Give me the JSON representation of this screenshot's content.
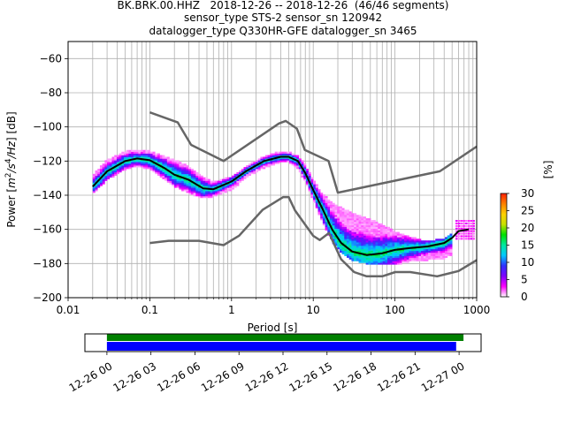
{
  "figure": {
    "title_lines": [
      "BK.BRK.00.HHZ   2018-12-26 -- 2018-12-26  (46/46 segments)",
      "sensor_type STS-2 sensor_sn 120942",
      "datalogger_type Q330HR-GFE datalogger_sn 3465"
    ]
  },
  "chart_data": {
    "type": "heatmap",
    "title": "BK.BRK.00.HHZ   2018-12-26 -- 2018-12-26  (46/46 segments)",
    "xlabel": "Period [s]",
    "ylabel_parts": [
      "Power [",
      "m",
      "2",
      "/s",
      "4",
      "/Hz",
      "] [dB]"
    ],
    "x_scale": "log",
    "xlim": [
      0.01,
      1000
    ],
    "ylim": [
      -200,
      -50
    ],
    "x_ticks": [
      0.01,
      0.1,
      1,
      10,
      100,
      1000
    ],
    "x_tick_labels": [
      "0.01",
      "0.1",
      "1",
      "10",
      "100",
      "1000"
    ],
    "y_ticks": [
      -200,
      -180,
      -160,
      -140,
      -120,
      -100,
      -80,
      -60
    ],
    "y_tick_labels": [
      "−200",
      "−180",
      "−160",
      "−140",
      "−120",
      "−100",
      "−80",
      "−60"
    ],
    "grid": true,
    "colorbar": {
      "label": "[%]",
      "min": 0,
      "max": 30,
      "ticks": [
        0,
        5,
        10,
        15,
        20,
        25,
        30
      ],
      "tick_labels": [
        "0",
        "5",
        "10",
        "15",
        "20",
        "25",
        "30"
      ],
      "colors": [
        "#ffffff",
        "#ff00ff",
        "#7f00ff",
        "#3030ff",
        "#00c8ff",
        "#00e8a0",
        "#00e000",
        "#c8e000",
        "#ffd000",
        "#ff8000",
        "#ff2000"
      ]
    },
    "noise_model_high": {
      "period": [
        0.1,
        0.22,
        0.32,
        0.8,
        3.8,
        4.6,
        6.3,
        7.9,
        15.4,
        20,
        354.8,
        1000
      ],
      "db": [
        -91.5,
        -97.4,
        -110.5,
        -120,
        -98,
        -96.5,
        -101,
        -113.5,
        -120,
        -138.5,
        -126,
        -111.5
      ]
    },
    "noise_model_low": {
      "period": [
        0.1,
        0.17,
        0.4,
        0.8,
        1.24,
        2.4,
        4.3,
        5,
        6,
        10,
        12,
        15.6,
        21.9,
        31.6,
        45,
        70,
        101,
        154,
        328,
        600,
        1000
      ],
      "db": [
        -168,
        -166.7,
        -166.7,
        -169.2,
        -163.7,
        -148.6,
        -141.1,
        -141.1,
        -149,
        -163.8,
        -166.2,
        -162.1,
        -177.5,
        -185,
        -187.5,
        -187.5,
        -185,
        -185,
        -187.5,
        -184.4,
        -178
      ]
    },
    "mean_curve": {
      "period": [
        0.02,
        0.03,
        0.05,
        0.07,
        0.1,
        0.15,
        0.2,
        0.3,
        0.45,
        0.6,
        1,
        1.5,
        2.5,
        4,
        5,
        6.5,
        8,
        10,
        13,
        17,
        22,
        30,
        45,
        70,
        100,
        150,
        250,
        400,
        500,
        600,
        800
      ],
      "db": [
        -135,
        -126,
        -120,
        -118.5,
        -119.5,
        -124,
        -128,
        -131,
        -136,
        -136.5,
        -132,
        -126,
        -120,
        -117.5,
        -117.5,
        -120,
        -127,
        -137,
        -148,
        -160,
        -168,
        -173,
        -175,
        -174,
        -172,
        -171,
        -170,
        -168,
        -165,
        -161,
        -160
      ]
    },
    "spread_curve": {
      "period": [
        0.02,
        0.03,
        0.05,
        0.07,
        0.1,
        0.15,
        0.2,
        0.3,
        0.45,
        0.6,
        1,
        1.5,
        2.5,
        4,
        5,
        6.5,
        8,
        10,
        13,
        17,
        22,
        30,
        45,
        70,
        100,
        150,
        250,
        400,
        500
      ],
      "db_top": [
        -129,
        -120,
        -115,
        -114,
        -115,
        -118,
        -120,
        -124,
        -130,
        -133,
        -130,
        -124,
        -118,
        -115,
        -115,
        -118,
        -123,
        -132,
        -140,
        -145,
        -148,
        -151,
        -154,
        -158,
        -162,
        -165,
        -168,
        -166,
        -163
      ],
      "db_bottom": [
        -138,
        -130,
        -124,
        -122,
        -124,
        -130,
        -134,
        -138,
        -141,
        -140,
        -136,
        -129,
        -123,
        -120,
        -120,
        -124,
        -131,
        -142,
        -155,
        -166,
        -173,
        -177,
        -179,
        -180,
        -180,
        -178,
        -177,
        -176,
        -174
      ]
    },
    "dot_cluster": {
      "period": [
        550,
        900
      ],
      "db": [
        -165,
        -154
      ]
    },
    "timeline": {
      "tick_labels": [
        "12-26 00",
        "12-26 03",
        "12-26 06",
        "12-26 09",
        "12-26 12",
        "12-26 15",
        "12-26 18",
        "12-26 21",
        "12-27 00"
      ],
      "range_hours": [
        -1.5,
        25.5
      ],
      "green_bar_hours": [
        0,
        24.3
      ],
      "blue_bar_hours": [
        0,
        23.8
      ],
      "colors": {
        "data_coverage": "#008000",
        "psd_segments": "#0000ff"
      }
    }
  }
}
